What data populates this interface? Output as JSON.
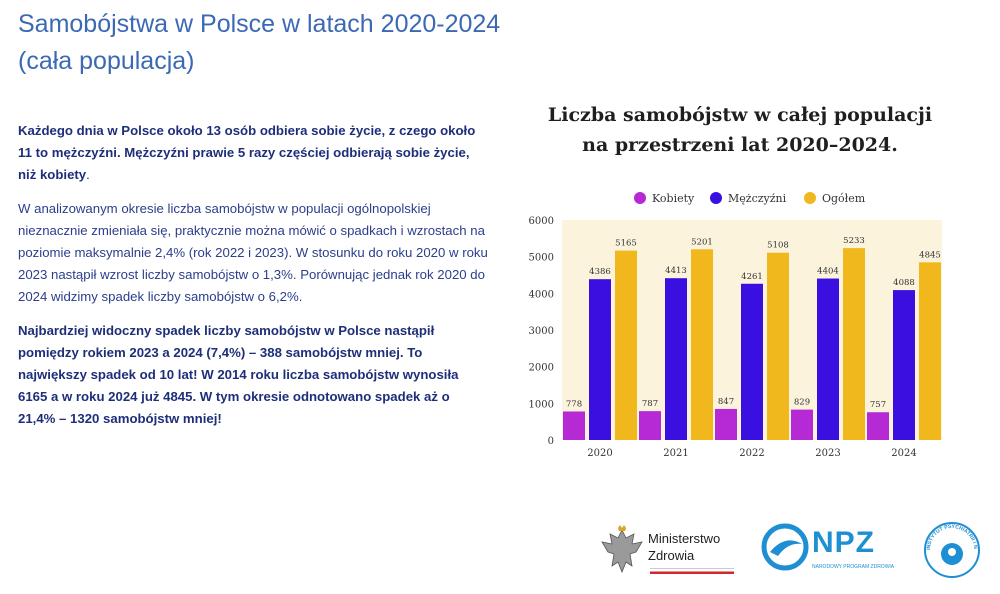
{
  "page": {
    "title_line1": "Samobójstwa w Polsce w latach 2020-2024",
    "title_line2": "(cała populacja)"
  },
  "text": {
    "p1_bold": "Każdego dnia w Polsce około 13 osób odbiera sobie życie, z czego około 11 to mężczyźni. Mężczyźni prawie 5 razy częściej odbierają sobie życie, niż kobiety",
    "p1_end": ".",
    "p2": "W analizowanym okresie liczba samobójstw w populacji ogólnopolskiej nieznacznie zmieniała się, praktycznie można mówić o spadkach i wzrostach na poziomie  maksymalnie 2,4% (rok  2022 i 2023). W stosunku do roku 2020 w roku 2023 nastąpił wzrost liczby samobójstw o 1,3%. Porównując jednak rok 2020 do 2024 widzimy spadek liczby samobójstw o 6,2%.",
    "p3": "Najbardziej widoczny spadek liczby samobójstw w Polsce nastąpił pomiędzy rokiem 2023 a 2024 (7,4%) – 388 samobójstw mniej. To największy spadek od 10 lat! W 2014 roku liczba samobójstw wynosiła 6165 a w roku 2024 już 4845. W tym okresie odnotowano spadek aż o 21,4% – 1320 samobójstw mniej!"
  },
  "chart_data": {
    "type": "bar",
    "title": "Liczba samobójstw w całej populacji na przestrzeni lat 2020–2024.",
    "title_line1": "Liczba samobójstw w całej populacji",
    "title_line2": "na przestrzeni lat 2020–2024.",
    "categories": [
      "2020",
      "2021",
      "2022",
      "2023",
      "2024"
    ],
    "series": [
      {
        "name": "Kobiety",
        "color": "#b52ad4",
        "values": [
          778,
          787,
          847,
          829,
          757
        ]
      },
      {
        "name": "Mężczyźni",
        "color": "#3a10e0",
        "values": [
          4386,
          4413,
          4261,
          4404,
          4088
        ]
      },
      {
        "name": "Ogółem",
        "color": "#f0b81c",
        "values": [
          5165,
          5201,
          5108,
          5233,
          4845
        ]
      }
    ],
    "ylim": [
      0,
      6000
    ],
    "yticks": [
      0,
      1000,
      2000,
      3000,
      4000,
      5000,
      6000
    ],
    "xlabel": "",
    "ylabel": "",
    "legend": "top",
    "background": "#fbf3dc"
  },
  "logos": {
    "ministry": [
      "Ministerstwo",
      "Zdrowia"
    ],
    "npz": "NPZ",
    "npz_sub": "NARODOWY PROGRAM ZDROWIA",
    "ipin": "INSTYTUT PSYCHIATRII I NEUROLOGII"
  }
}
